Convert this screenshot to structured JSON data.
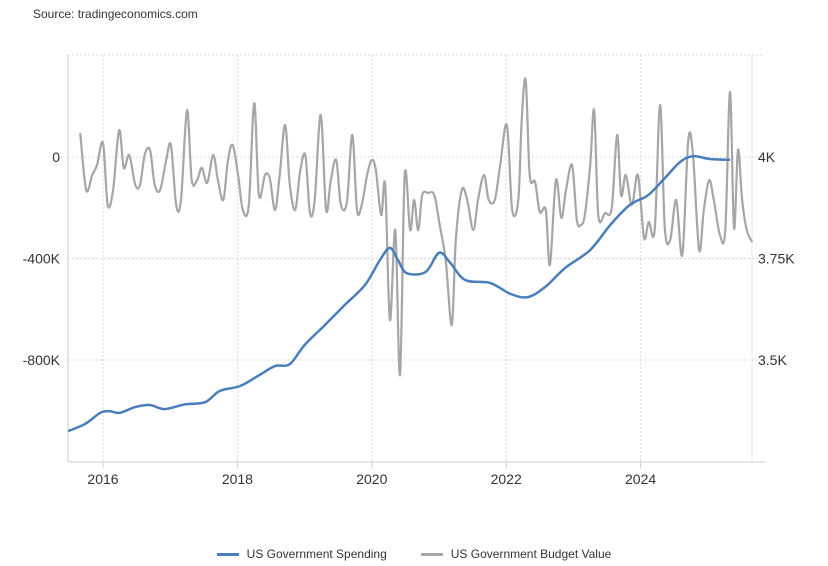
{
  "source": "Source: tradingeconomics.com",
  "chart_data": {
    "type": "line",
    "title": "",
    "x_ticks": [
      2016,
      2018,
      2020,
      2022,
      2024
    ],
    "x_tick_labels": [
      "2016",
      "2018",
      "2020",
      "2022",
      "2024"
    ],
    "xlim": [
      2015.48,
      2025.7
    ],
    "left_axis": {
      "ticks": [
        0,
        -400,
        -800
      ],
      "tick_labels": [
        "0",
        "-400K",
        "-800K"
      ],
      "unit": "K",
      "ylim": [
        -1200,
        400
      ]
    },
    "right_axis": {
      "ticks": [
        4000,
        3750,
        3500
      ],
      "tick_labels": [
        "4K",
        "3.75K",
        "3.5K"
      ],
      "ylim": [
        3300,
        4250
      ]
    },
    "grid": true,
    "legend_position": "bottom",
    "series": [
      {
        "name": "US Government Spending",
        "axis": "right",
        "color": "#4a7ebb",
        "x": [
          2015.48,
          2015.73,
          2015.96,
          2016.1,
          2016.25,
          2016.48,
          2016.7,
          2016.92,
          2017.22,
          2017.52,
          2017.74,
          2018.04,
          2018.31,
          2018.56,
          2018.78,
          2019.0,
          2019.3,
          2019.6,
          2019.9,
          2020.12,
          2020.27,
          2020.39,
          2020.52,
          2020.8,
          2021.0,
          2021.16,
          2021.39,
          2021.76,
          2022.06,
          2022.32,
          2022.58,
          2022.88,
          2023.25,
          2023.55,
          2023.84,
          2024.11,
          2024.36,
          2024.59,
          2024.78,
          2025.03,
          2025.33
        ],
        "values": [
          3325,
          3342,
          3370,
          3374,
          3370,
          3384,
          3389,
          3379,
          3391,
          3396,
          3424,
          3436,
          3461,
          3485,
          3490,
          3537,
          3586,
          3636,
          3685,
          3746,
          3776,
          3746,
          3714,
          3717,
          3764,
          3741,
          3697,
          3690,
          3663,
          3655,
          3680,
          3727,
          3771,
          3833,
          3882,
          3906,
          3948,
          3988,
          4002,
          3995,
          3993
        ]
      },
      {
        "name": "US Government Budget Value",
        "axis": "left",
        "color": "#a6a6a6",
        "x": [
          2015.66,
          2015.75,
          2015.84,
          2015.91,
          2016.0,
          2016.07,
          2016.15,
          2016.24,
          2016.31,
          2016.39,
          2016.48,
          2016.55,
          2016.62,
          2016.7,
          2016.77,
          2016.85,
          2016.94,
          2017.01,
          2017.09,
          2017.16,
          2017.25,
          2017.32,
          2017.4,
          2017.47,
          2017.55,
          2017.64,
          2017.71,
          2017.79,
          2017.86,
          2017.93,
          2018.01,
          2018.08,
          2018.17,
          2018.25,
          2018.32,
          2018.41,
          2018.48,
          2018.56,
          2018.63,
          2018.71,
          2018.78,
          2018.86,
          2018.93,
          2019.01,
          2019.08,
          2019.15,
          2019.24,
          2019.32,
          2019.39,
          2019.47,
          2019.54,
          2019.63,
          2019.71,
          2019.78,
          2019.85,
          2019.93,
          2020.0,
          2020.06,
          2020.14,
          2020.2,
          2020.27,
          2020.35,
          2020.42,
          2020.49,
          2020.57,
          2020.63,
          2020.69,
          2020.75,
          2020.84,
          2020.93,
          2021.01,
          2021.1,
          2021.19,
          2021.25,
          2021.34,
          2021.42,
          2021.51,
          2021.58,
          2021.67,
          2021.74,
          2021.83,
          2021.91,
          2022.01,
          2022.09,
          2022.18,
          2022.23,
          2022.29,
          2022.35,
          2022.43,
          2022.5,
          2022.59,
          2022.65,
          2022.74,
          2022.82,
          2022.89,
          2022.98,
          2023.05,
          2023.11,
          2023.17,
          2023.25,
          2023.31,
          2023.37,
          2023.47,
          2023.57,
          2023.65,
          2023.71,
          2023.78,
          2023.87,
          2023.96,
          2024.05,
          2024.12,
          2024.21,
          2024.29,
          2024.36,
          2024.44,
          2024.53,
          2024.62,
          2024.71,
          2024.78,
          2024.87,
          2024.94,
          2025.02,
          2025.09,
          2025.18,
          2025.26,
          2025.33,
          2025.39,
          2025.45,
          2025.51,
          2025.58,
          2025.66
        ],
        "values": [
          95,
          -130,
          -71,
          -32,
          55,
          -189,
          -130,
          106,
          -43,
          8,
          -110,
          -110,
          8,
          28,
          -110,
          -130,
          -12,
          47,
          -189,
          -169,
          185,
          -91,
          -91,
          -43,
          -102,
          8,
          -91,
          -169,
          -12,
          47,
          -71,
          -209,
          -189,
          213,
          -150,
          -71,
          -83,
          -209,
          -71,
          126,
          -110,
          -209,
          -63,
          8,
          -221,
          -169,
          166,
          -209,
          -91,
          -12,
          -189,
          -177,
          87,
          -209,
          -189,
          -71,
          -12,
          -51,
          -229,
          -110,
          -642,
          -288,
          -859,
          -71,
          -288,
          -169,
          -288,
          -150,
          -142,
          -150,
          -268,
          -406,
          -662,
          -327,
          -130,
          -169,
          -288,
          -169,
          -71,
          -169,
          -169,
          -32,
          126,
          -209,
          -169,
          146,
          303,
          -71,
          -99,
          -217,
          -209,
          -426,
          -91,
          -240,
          -130,
          -32,
          -248,
          -268,
          -229,
          -32,
          185,
          -229,
          -221,
          -201,
          87,
          -150,
          -71,
          -189,
          -71,
          -319,
          -256,
          -288,
          205,
          -280,
          -327,
          -169,
          -386,
          67,
          8,
          -367,
          -209,
          -91,
          -169,
          -307,
          -288,
          256,
          -280,
          28,
          -169,
          -288,
          -335
        ]
      }
    ]
  }
}
